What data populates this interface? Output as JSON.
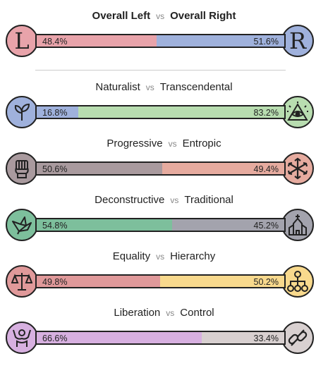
{
  "header": {
    "left": "Overall Left",
    "vs": "vs",
    "right": "Overall Right",
    "left_pct": "48.4%",
    "right_pct": "51.6%",
    "left_value": 48.4,
    "left_color": "#e8a3aa",
    "right_color": "#9fb1dc",
    "left_icon": "letter-l-icon",
    "right_icon": "letter-r-icon",
    "left_glyph": "L",
    "right_glyph": "R"
  },
  "axes": [
    {
      "left": "Naturalist",
      "vs": "vs",
      "right": "Transcendental",
      "left_pct": "16.8%",
      "right_pct": "83.2%",
      "left_value": 16.8,
      "left_color": "#9fb1dc",
      "right_color": "#b8ddb0",
      "left_icon": "plant-icon",
      "right_icon": "eye-pyramid-icon"
    },
    {
      "left": "Progressive",
      "vs": "vs",
      "right": "Entropic",
      "left_pct": "50.6%",
      "right_pct": "49.4%",
      "left_value": 50.6,
      "left_color": "#a99a9e",
      "right_color": "#e6ab9f",
      "left_icon": "fist-icon",
      "right_icon": "snowflake-arrows-icon"
    },
    {
      "left": "Deconstructive",
      "vs": "vs",
      "right": "Traditional",
      "left_pct": "54.8%",
      "right_pct": "45.2%",
      "left_value": 54.8,
      "left_color": "#7dbf9c",
      "right_color": "#a3a3ad",
      "left_icon": "origami-bird-icon",
      "right_icon": "church-icon"
    },
    {
      "left": "Equality",
      "vs": "vs",
      "right": "Hierarchy",
      "left_pct": "49.8%",
      "right_pct": "50.2%",
      "left_value": 49.8,
      "left_color": "#e0999a",
      "right_color": "#f8d98d",
      "left_icon": "scales-icon",
      "right_icon": "hierarchy-icon"
    },
    {
      "left": "Liberation",
      "vs": "vs",
      "right": "Control",
      "left_pct": "66.6%",
      "right_pct": "33.4%",
      "left_value": 66.6,
      "left_color": "#d7b0e0",
      "right_color": "#d8d0d0",
      "left_icon": "raised-arms-icon",
      "right_icon": "chain-icon"
    }
  ]
}
